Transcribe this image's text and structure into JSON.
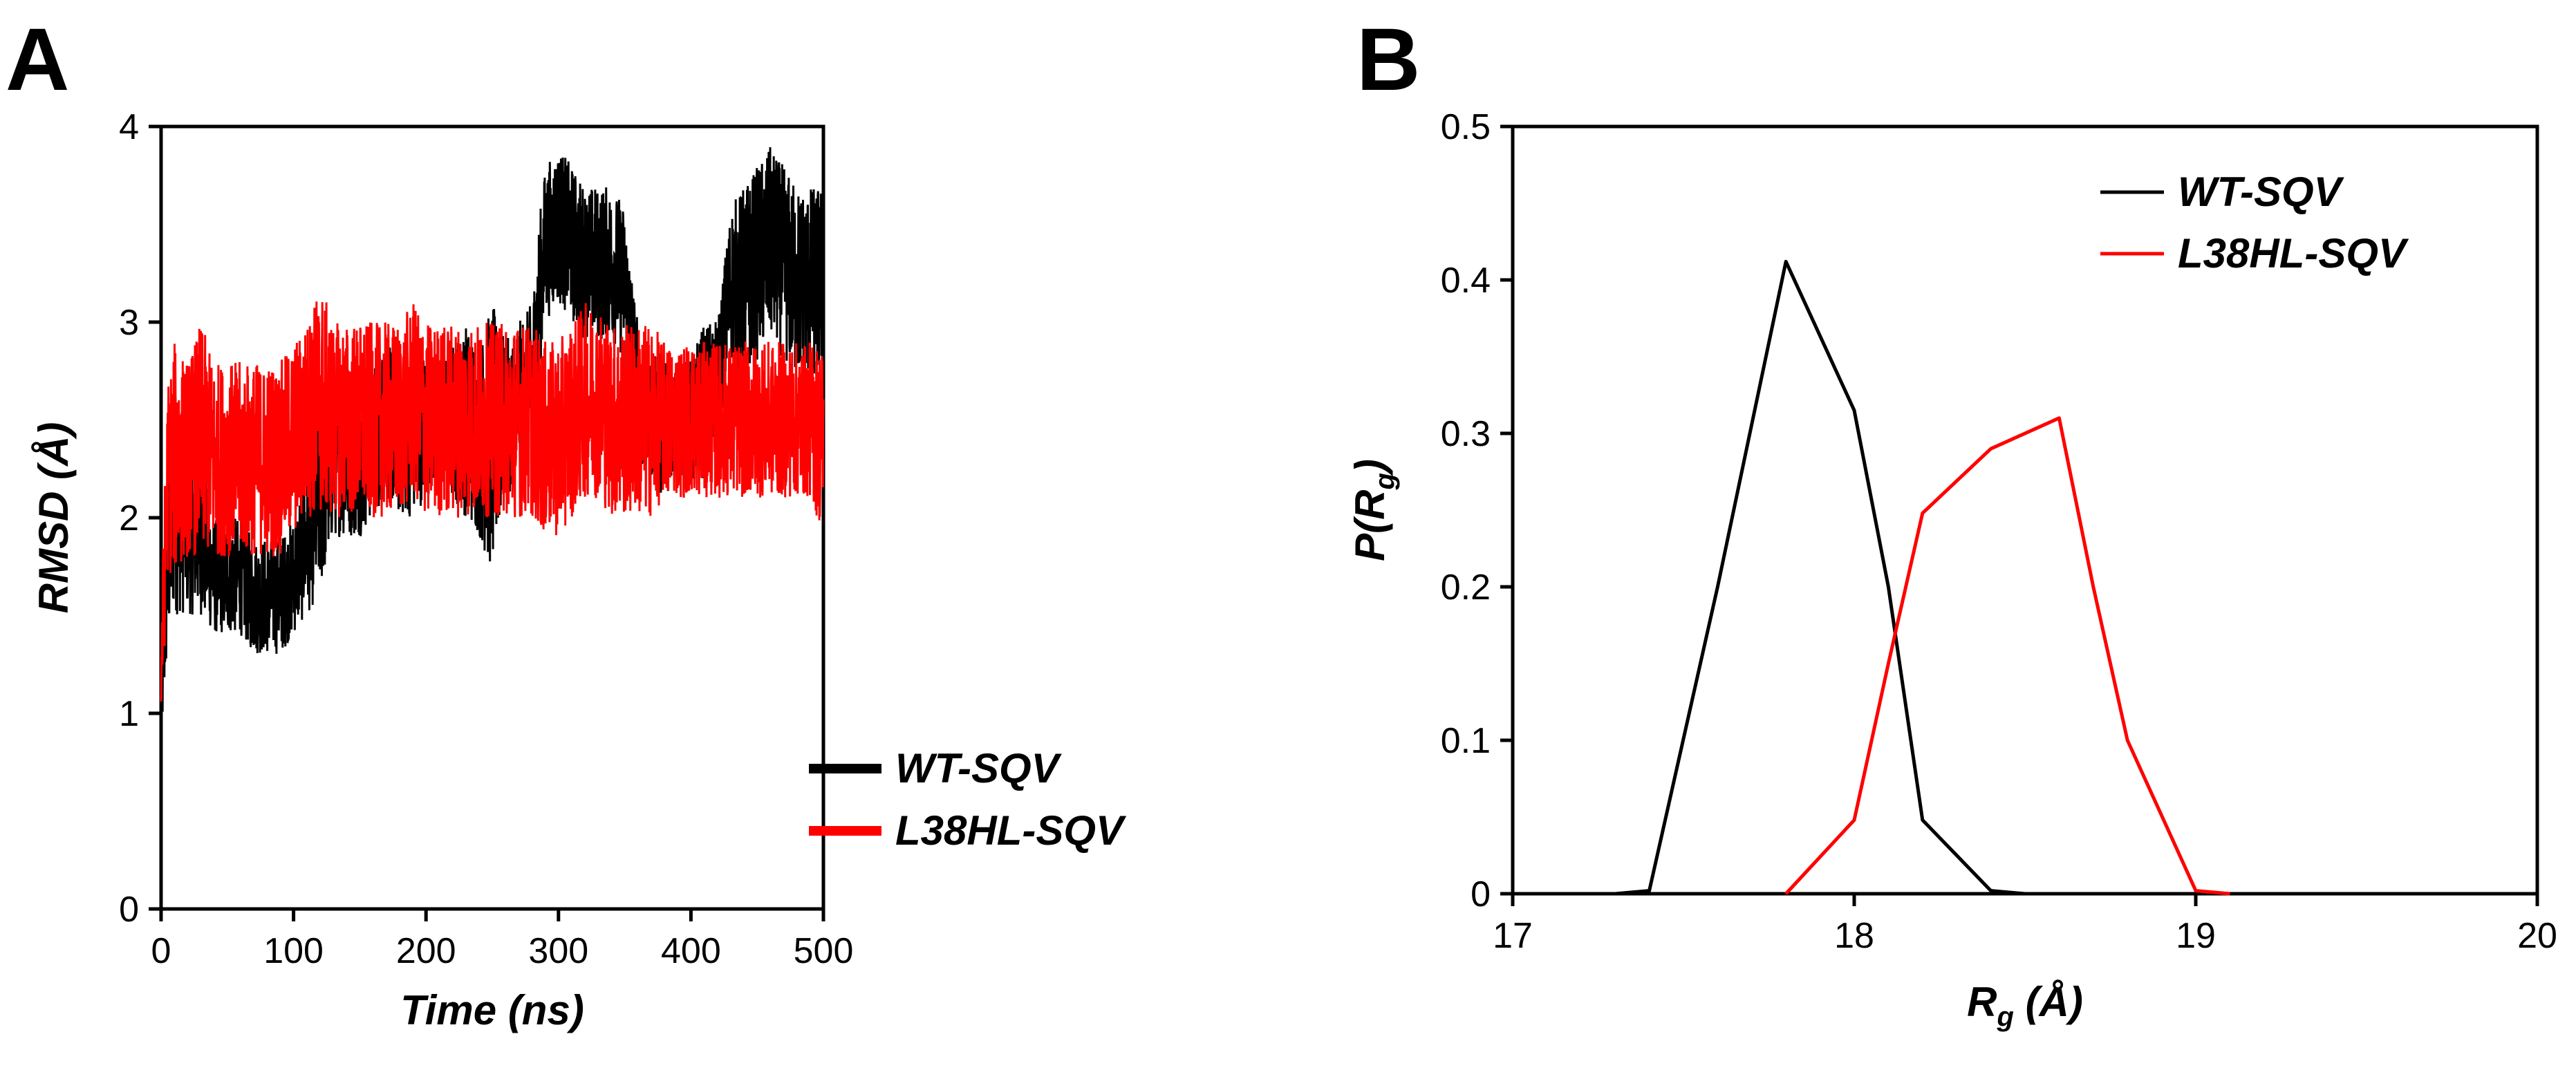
{
  "chart_data": [
    {
      "panel": "A",
      "type": "line",
      "title": "",
      "xlabel": "Time (ns)",
      "ylabel": "RMSD (Å)",
      "xlim": [
        0,
        500
      ],
      "ylim": [
        0,
        4
      ],
      "xticks": [
        0,
        100,
        200,
        300,
        400,
        500
      ],
      "yticks": [
        0,
        1,
        2,
        3,
        4
      ],
      "legend_position": "bottom-right",
      "series": [
        {
          "name": "WT-SQV",
          "color": "#000000",
          "x": [
            0,
            5,
            10,
            20,
            30,
            40,
            50,
            60,
            70,
            80,
            90,
            100,
            110,
            120,
            130,
            140,
            150,
            160,
            170,
            180,
            190,
            200,
            210,
            220,
            230,
            240,
            250,
            260,
            270,
            280,
            285,
            290,
            300,
            310,
            320,
            330,
            340,
            350,
            360,
            370,
            380,
            390,
            400,
            410,
            420,
            430,
            440,
            450,
            460,
            470,
            480,
            490,
            500
          ],
          "mean": [
            1.0,
            1.8,
            2.1,
            2.0,
            1.9,
            1.7,
            1.7,
            1.7,
            1.6,
            1.6,
            1.6,
            1.7,
            1.9,
            2.1,
            2.3,
            2.3,
            2.3,
            2.4,
            2.5,
            2.4,
            2.4,
            2.5,
            2.5,
            2.5,
            2.5,
            2.4,
            2.4,
            2.5,
            2.6,
            2.7,
            3.1,
            3.4,
            3.5,
            3.4,
            3.3,
            3.3,
            3.3,
            3.2,
            2.6,
            2.5,
            2.5,
            2.5,
            2.5,
            2.6,
            2.7,
            3.2,
            3.2,
            3.3,
            3.4,
            3.3,
            3.2,
            3.2,
            3.2
          ],
          "amp": [
            0.2,
            0.5,
            0.6,
            0.5,
            0.4,
            0.3,
            0.3,
            0.3,
            0.3,
            0.3,
            0.3,
            0.3,
            0.4,
            0.5,
            0.4,
            0.4,
            0.4,
            0.4,
            0.4,
            0.4,
            0.4,
            0.4,
            0.3,
            0.4,
            0.5,
            0.5,
            0.7,
            0.4,
            0.4,
            0.4,
            0.4,
            0.4,
            0.4,
            0.4,
            0.4,
            0.4,
            0.4,
            0.4,
            0.4,
            0.3,
            0.4,
            0.3,
            0.3,
            0.4,
            0.3,
            0.4,
            0.5,
            0.5,
            0.5,
            0.5,
            0.5,
            0.5,
            0.5
          ]
        },
        {
          "name": "L38HL-SQV",
          "color": "#ff0000",
          "x": [
            0,
            5,
            10,
            20,
            30,
            40,
            50,
            60,
            70,
            80,
            90,
            100,
            110,
            120,
            130,
            140,
            150,
            160,
            170,
            180,
            190,
            200,
            210,
            220,
            230,
            240,
            250,
            260,
            270,
            280,
            290,
            300,
            310,
            320,
            330,
            340,
            350,
            360,
            370,
            380,
            390,
            400,
            410,
            420,
            430,
            440,
            450,
            460,
            470,
            480,
            490,
            500
          ],
          "mean": [
            1.2,
            2.2,
            2.3,
            2.3,
            2.4,
            2.3,
            2.3,
            2.3,
            2.3,
            2.3,
            2.3,
            2.4,
            2.5,
            2.6,
            2.5,
            2.5,
            2.5,
            2.5,
            2.5,
            2.5,
            2.6,
            2.5,
            2.5,
            2.5,
            2.5,
            2.5,
            2.5,
            2.5,
            2.5,
            2.5,
            2.4,
            2.4,
            2.5,
            2.6,
            2.6,
            2.5,
            2.5,
            2.5,
            2.5,
            2.5,
            2.5,
            2.5,
            2.5,
            2.5,
            2.5,
            2.5,
            2.5,
            2.5,
            2.5,
            2.5,
            2.5,
            2.4
          ],
          "amp": [
            0.3,
            0.5,
            0.6,
            0.5,
            0.6,
            0.5,
            0.5,
            0.5,
            0.5,
            0.5,
            0.5,
            0.5,
            0.5,
            0.6,
            0.5,
            0.5,
            0.5,
            0.5,
            0.5,
            0.5,
            0.5,
            0.5,
            0.5,
            0.5,
            0.5,
            0.5,
            0.5,
            0.5,
            0.5,
            0.5,
            0.5,
            0.5,
            0.5,
            0.5,
            0.5,
            0.5,
            0.5,
            0.5,
            0.5,
            0.4,
            0.4,
            0.4,
            0.4,
            0.4,
            0.4,
            0.4,
            0.4,
            0.4,
            0.4,
            0.4,
            0.4,
            0.5
          ]
        }
      ]
    },
    {
      "panel": "B",
      "type": "line",
      "title": "",
      "xlabel": "Rg (Å)",
      "xlabel_main": "R",
      "xlabel_sub": "g",
      "xlabel_tail": " (Å)",
      "ylabel": "P(Rg)",
      "ylabel_main": "P(R",
      "ylabel_sub": "g",
      "ylabel_tail": ")",
      "xlim": [
        17,
        20
      ],
      "ylim": [
        0,
        0.5
      ],
      "xticks": [
        17,
        18,
        19,
        20
      ],
      "yticks": [
        0,
        0.1,
        0.2,
        0.3,
        0.4,
        0.5
      ],
      "legend_position": "top-right",
      "series": [
        {
          "name": "WT-SQV",
          "color": "#000000",
          "x": [
            17.3,
            17.4,
            17.6,
            17.8,
            18.0,
            18.1,
            18.2,
            18.3,
            18.4,
            18.5
          ],
          "y": [
            0.0,
            0.002,
            0.2,
            0.412,
            0.315,
            0.2,
            0.048,
            0.025,
            0.002,
            0.0
          ]
        },
        {
          "name": "L38HL-SQV",
          "color": "#ff0000",
          "x": [
            17.8,
            18.0,
            18.1,
            18.2,
            18.4,
            18.6,
            18.7,
            18.8,
            19.0,
            19.1
          ],
          "y": [
            0.0,
            0.048,
            0.15,
            0.248,
            0.29,
            0.31,
            0.2,
            0.1,
            0.002,
            0.0
          ]
        }
      ]
    }
  ],
  "panels": {
    "a": {
      "label": "A"
    },
    "b": {
      "label": "B"
    }
  },
  "colors": {
    "wt": "#000000",
    "mutant": "#ff0000",
    "axis": "#000000"
  }
}
